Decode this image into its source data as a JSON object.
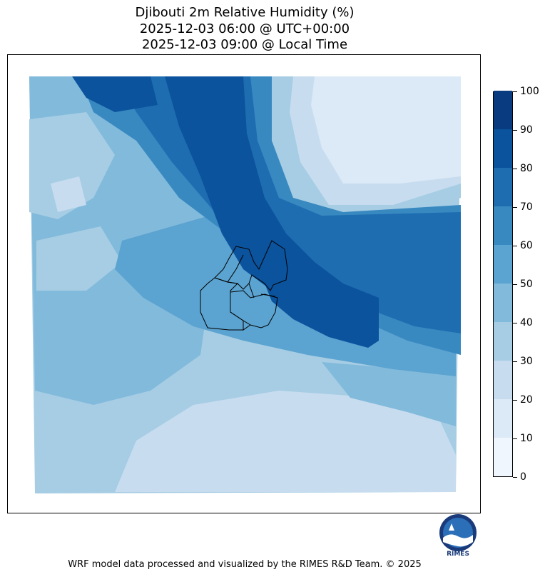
{
  "title": {
    "line1": "Djibouti 2m Relative Humidity (%)",
    "line2": "2025-12-03 06:00 @ UTC+00:00",
    "line3": "2025-12-03 09:00 @ Local Time"
  },
  "colorbar": {
    "ticks": [
      "0",
      "10",
      "20",
      "30",
      "40",
      "50",
      "60",
      "70",
      "80",
      "90",
      "100"
    ],
    "levels": [
      0,
      10,
      20,
      30,
      40,
      50,
      60,
      70,
      80,
      90,
      100
    ],
    "colors": [
      "#f0f6fd",
      "#dce9f6",
      "#c7dcef",
      "#a6cde4",
      "#82badb",
      "#5ba3d0",
      "#3989c1",
      "#1f6db1",
      "#0b539d",
      "#083b80"
    ]
  },
  "logo": {
    "text": "RIMES",
    "icon": "rimes-logo-icon"
  },
  "footer": "WRF model data processed and visualized by the RIMES R&D Team. © 2025",
  "colors": {
    "frame": "#000000",
    "background": "#ffffff"
  }
}
